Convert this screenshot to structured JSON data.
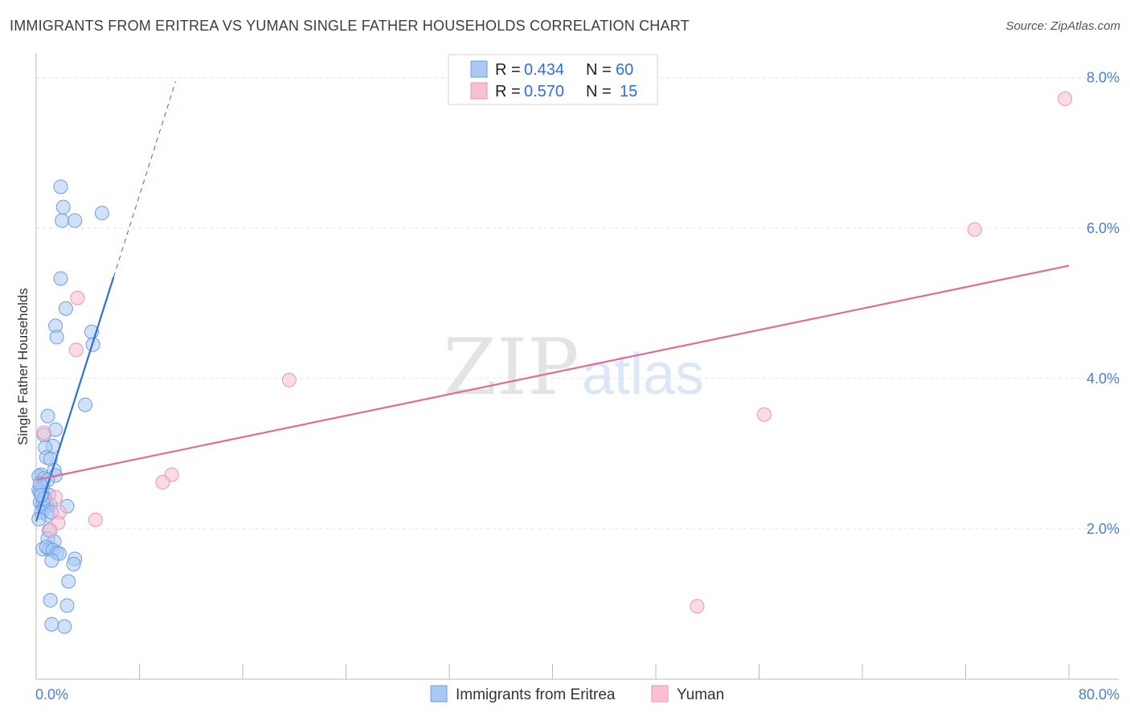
{
  "title": "IMMIGRANTS FROM ERITREA VS YUMAN SINGLE FATHER HOUSEHOLDS CORRELATION CHART",
  "source": "Source: ZipAtlas.com",
  "watermark": {
    "zip": "ZIP",
    "atlas": "atlas"
  },
  "colors": {
    "blue_fill": "#aac8f4",
    "blue_stroke": "#6a9ee6",
    "blue_line": "#2f6fd1",
    "pink_fill": "#f8c0d2",
    "pink_stroke": "#e996b3",
    "pink_line": "#e06b93",
    "tick_label": "#4a7fd0",
    "grid": "#e2e2e2"
  },
  "legend": {
    "rows": [
      {
        "r_label": "R = ",
        "r_value": "0.434",
        "n_label": "N = ",
        "n_value": "60"
      },
      {
        "r_label": "R = ",
        "r_value": "0.570",
        "n_label": "N = ",
        "n_value": "15"
      }
    ]
  },
  "chart_data": {
    "type": "scatter",
    "title": "IMMIGRANTS FROM ERITREA VS YUMAN SINGLE FATHER HOUSEHOLDS CORRELATION CHART",
    "xlabel": "",
    "ylabel": "Single Father Households",
    "xlim": [
      0,
      80
    ],
    "ylim": [
      0,
      8.2
    ],
    "x_tick_labels": [
      "0.0%",
      "80.0%"
    ],
    "y_ticks": [
      2,
      4,
      6,
      8
    ],
    "y_tick_labels": [
      "2.0%",
      "4.0%",
      "6.0%",
      "8.0%"
    ],
    "grid": true,
    "legend_position": "top-center",
    "series": [
      {
        "name": "Immigrants from Eritrea",
        "color": "#aac8f4",
        "stats": {
          "R": 0.434,
          "N": 60
        },
        "trend": {
          "x": [
            0.0,
            6.0
          ],
          "y": [
            2.1,
            5.35
          ],
          "dashed_extension_to_x": 10.8
        },
        "points": [
          [
            1.9,
            6.55
          ],
          [
            2.1,
            6.28
          ],
          [
            2.0,
            6.1
          ],
          [
            3.0,
            6.1
          ],
          [
            5.1,
            6.2
          ],
          [
            1.9,
            5.33
          ],
          [
            2.3,
            4.93
          ],
          [
            1.5,
            4.7
          ],
          [
            1.6,
            4.55
          ],
          [
            4.3,
            4.62
          ],
          [
            4.4,
            4.45
          ],
          [
            3.8,
            3.65
          ],
          [
            0.9,
            3.5
          ],
          [
            1.5,
            3.32
          ],
          [
            0.6,
            3.25
          ],
          [
            1.3,
            3.1
          ],
          [
            0.7,
            3.08
          ],
          [
            0.8,
            2.95
          ],
          [
            1.1,
            2.93
          ],
          [
            1.4,
            2.78
          ],
          [
            1.5,
            2.71
          ],
          [
            0.4,
            2.72
          ],
          [
            0.2,
            2.7
          ],
          [
            0.6,
            2.67
          ],
          [
            0.9,
            2.65
          ],
          [
            0.5,
            2.55
          ],
          [
            0.2,
            2.52
          ],
          [
            0.3,
            2.48
          ],
          [
            1.0,
            2.45
          ],
          [
            0.7,
            2.41
          ],
          [
            0.3,
            2.35
          ],
          [
            0.5,
            2.33
          ],
          [
            0.8,
            2.32
          ],
          [
            1.1,
            2.32
          ],
          [
            2.4,
            2.3
          ],
          [
            0.6,
            2.28
          ],
          [
            0.4,
            2.22
          ],
          [
            0.9,
            2.18
          ],
          [
            0.2,
            2.13
          ],
          [
            1.0,
            1.98
          ],
          [
            0.9,
            1.87
          ],
          [
            1.4,
            1.83
          ],
          [
            0.5,
            1.73
          ],
          [
            1.0,
            1.73
          ],
          [
            0.8,
            1.76
          ],
          [
            1.3,
            1.72
          ],
          [
            1.6,
            1.68
          ],
          [
            1.8,
            1.67
          ],
          [
            3.0,
            1.6
          ],
          [
            1.2,
            1.58
          ],
          [
            2.9,
            1.53
          ],
          [
            2.5,
            1.3
          ],
          [
            1.1,
            1.05
          ],
          [
            2.4,
            0.98
          ],
          [
            1.2,
            0.73
          ],
          [
            2.2,
            0.7
          ],
          [
            0.3,
            2.6
          ],
          [
            0.6,
            2.4
          ],
          [
            1.2,
            2.22
          ],
          [
            0.4,
            2.45
          ]
        ]
      },
      {
        "name": "Yuman",
        "color": "#f8c0d2",
        "stats": {
          "R": 0.57,
          "N": 15
        },
        "trend": {
          "x": [
            0.0,
            80.0
          ],
          "y": [
            2.65,
            5.5
          ]
        },
        "points": [
          [
            79.7,
            7.72
          ],
          [
            72.7,
            5.98
          ],
          [
            3.2,
            5.07
          ],
          [
            3.1,
            4.38
          ],
          [
            19.6,
            3.98
          ],
          [
            56.4,
            3.52
          ],
          [
            10.5,
            2.72
          ],
          [
            9.8,
            2.62
          ],
          [
            0.6,
            3.28
          ],
          [
            1.5,
            2.42
          ],
          [
            1.8,
            2.22
          ],
          [
            1.7,
            2.08
          ],
          [
            4.6,
            2.12
          ],
          [
            1.1,
            1.98
          ],
          [
            51.2,
            0.97
          ]
        ]
      }
    ]
  },
  "bottom_legend": {
    "items": [
      {
        "label": "Immigrants from Eritrea"
      },
      {
        "label": "Yuman"
      }
    ]
  }
}
